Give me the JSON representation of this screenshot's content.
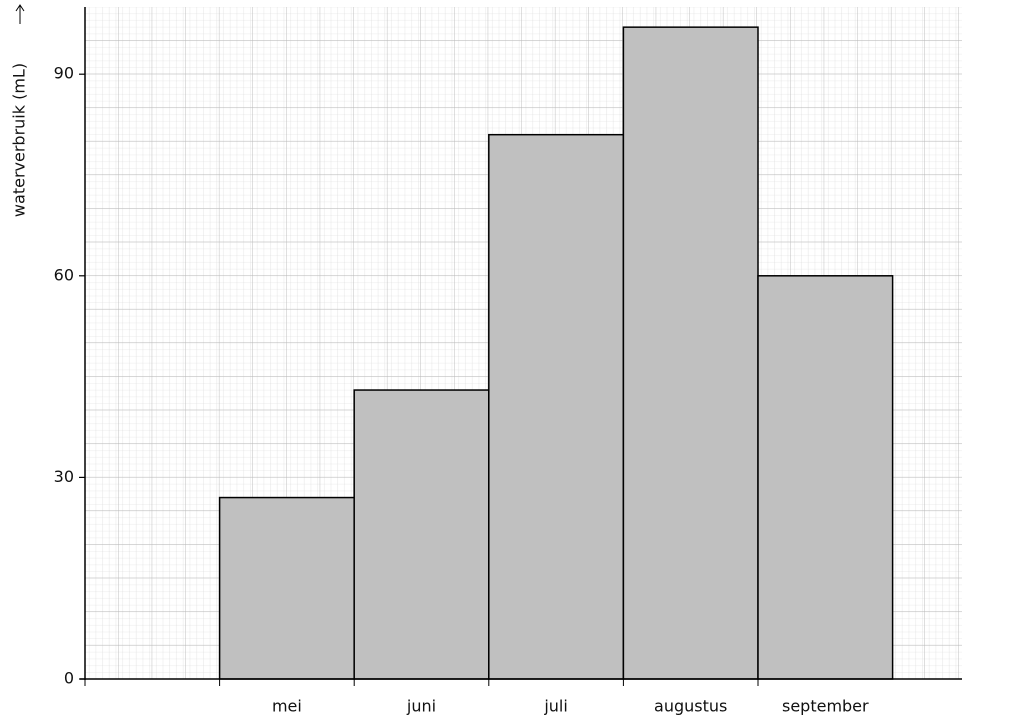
{
  "chart_data": {
    "type": "bar",
    "y_label": "waterverbruik (mL)",
    "categories": [
      null,
      "mei",
      "juni",
      "juli",
      "augustus",
      "september"
    ],
    "values": [
      null,
      27,
      43,
      81,
      97,
      60
    ],
    "color": "#c0c0c0",
    "ylim": [
      0,
      100
    ],
    "yticks": [
      0,
      30,
      60,
      90
    ],
    "grid": true
  }
}
